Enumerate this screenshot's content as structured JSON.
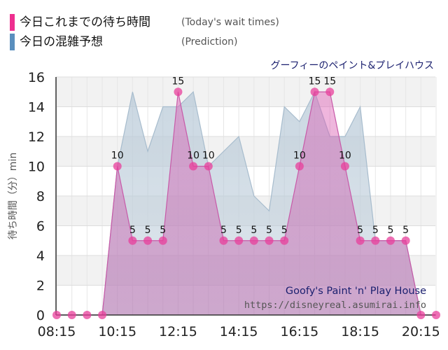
{
  "legend": [
    {
      "label": "今日これまでの待ち時間",
      "note": "(Today's wait times)",
      "color": "#ee2f8f"
    },
    {
      "label": "今日の混雑予想",
      "note": "(Prediction)",
      "color": "#5a8fbe"
    }
  ],
  "attraction_ja": "グーフィーのペイント&プレイハウス",
  "attraction_en": "Goofy's Paint 'n' Play House",
  "source_url": "https://disneyreal.asumirai.info",
  "chart_data": {
    "type": "area",
    "ylabel": "待ち時間（分）min",
    "xlabel": "",
    "ylim": [
      0,
      16
    ],
    "yticks": [
      0,
      2,
      4,
      6,
      8,
      10,
      12,
      14,
      16
    ],
    "xticks": [
      "08:15",
      "10:15",
      "12:15",
      "14:15",
      "16:15",
      "18:15",
      "20:15"
    ],
    "grid": true,
    "x": [
      "08:15",
      "08:45",
      "09:15",
      "09:45",
      "10:15",
      "10:45",
      "11:15",
      "11:45",
      "12:15",
      "12:45",
      "13:15",
      "13:45",
      "14:15",
      "14:45",
      "15:15",
      "15:45",
      "16:15",
      "16:45",
      "17:15",
      "17:45",
      "18:15",
      "18:45",
      "19:15",
      "19:45",
      "20:15",
      "20:45"
    ],
    "series": [
      {
        "role": "actual",
        "color": "#e83f9b",
        "values": [
          0,
          0,
          0,
          0,
          10,
          5,
          5,
          5,
          15,
          10,
          10,
          5,
          5,
          5,
          5,
          5,
          10,
          15,
          15,
          10,
          5,
          5,
          5,
          5,
          0,
          0
        ],
        "data_labels": [
          null,
          null,
          null,
          null,
          "10",
          "5",
          "5",
          "5",
          "15",
          "10",
          "10",
          "5",
          "5",
          "5",
          "5",
          "5",
          "10",
          "15",
          "15",
          "10",
          "5",
          "5",
          "5",
          "5",
          null,
          null
        ]
      },
      {
        "role": "prediction",
        "color": "#8fa9c2",
        "values": [
          0,
          0,
          0,
          0,
          10,
          15,
          11,
          14,
          14,
          15,
          10,
          11,
          12,
          8,
          7,
          14,
          13,
          15,
          12,
          12,
          14,
          5,
          5,
          5,
          0,
          0
        ]
      }
    ]
  }
}
